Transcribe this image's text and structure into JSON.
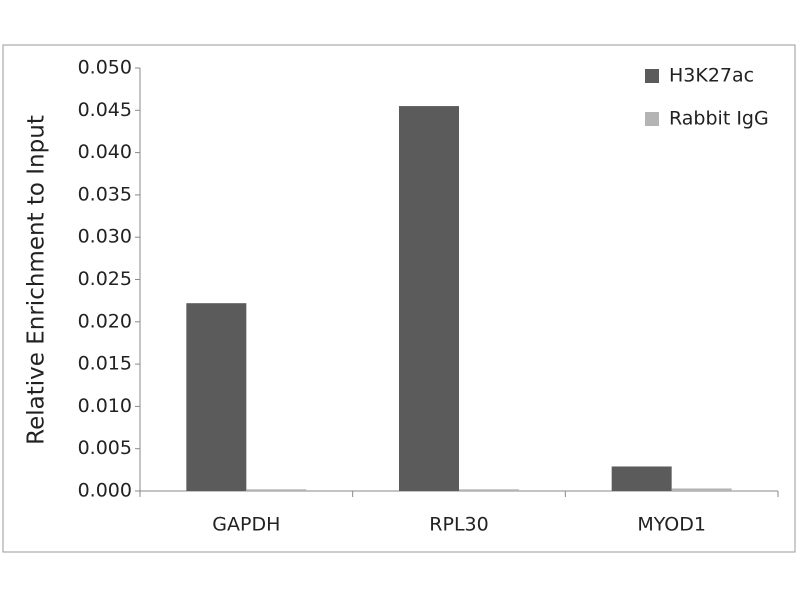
{
  "chart_data": {
    "type": "bar",
    "ylabel": "Relative Enrichment to Input",
    "categories": [
      "GAPDH",
      "RPL30",
      "MYOD1"
    ],
    "series": [
      {
        "name": "H3K27ac",
        "color": "#5b5b5b",
        "values": [
          0.0222,
          0.0455,
          0.0029
        ]
      },
      {
        "name": "Rabbit IgG",
        "color": "#b4b4b4",
        "values": [
          0.0002,
          0.0002,
          0.0003
        ]
      }
    ],
    "ylim": [
      0,
      0.05
    ],
    "yticks": [
      {
        "value": 0,
        "label": "0.000"
      },
      {
        "value": 0.005,
        "label": "0.005"
      },
      {
        "value": 0.01,
        "label": "0.010"
      },
      {
        "value": 0.015,
        "label": "0.015"
      },
      {
        "value": 0.02,
        "label": "0.020"
      },
      {
        "value": 0.025,
        "label": "0.025"
      },
      {
        "value": 0.03,
        "label": "0.030"
      },
      {
        "value": 0.035,
        "label": "0.035"
      },
      {
        "value": 0.04,
        "label": "0.040"
      },
      {
        "value": 0.045,
        "label": "0.045"
      },
      {
        "value": 0.05,
        "label": "0.050"
      }
    ],
    "grid": false,
    "legend": "top-right"
  }
}
